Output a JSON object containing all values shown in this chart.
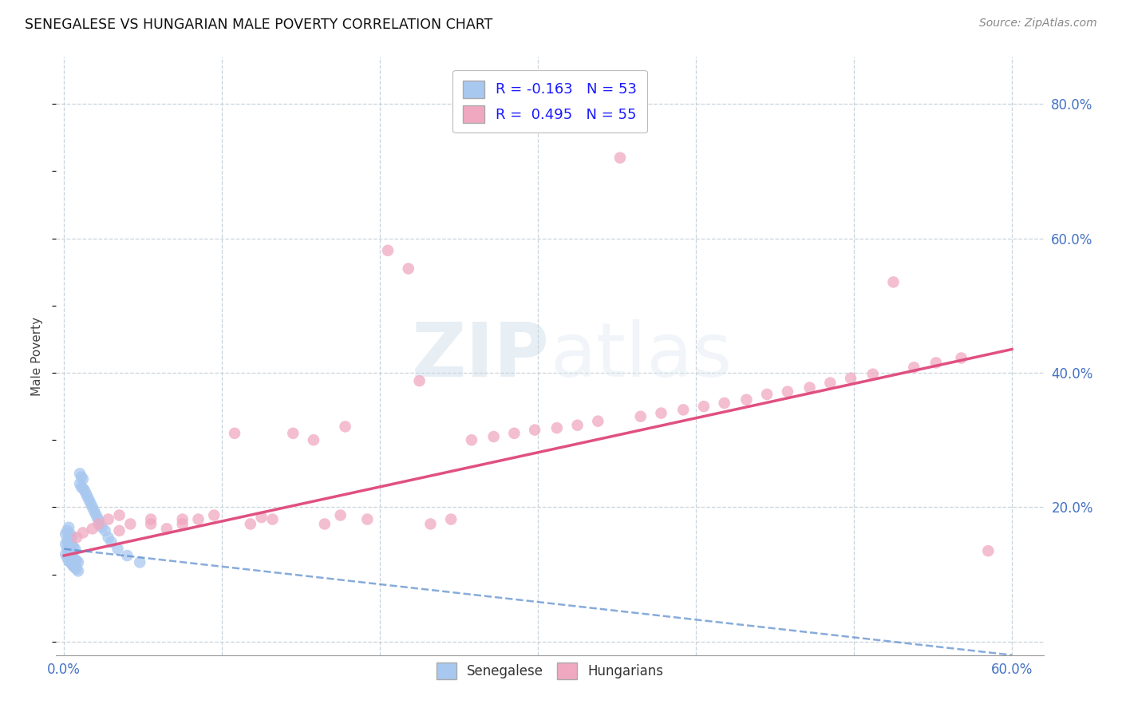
{
  "title": "SENEGALESE VS HUNGARIAN MALE POVERTY CORRELATION CHART",
  "source": "Source: ZipAtlas.com",
  "ylabel": "Male Poverty",
  "xlim": [
    -0.005,
    0.62
  ],
  "ylim": [
    -0.02,
    0.87
  ],
  "blue_color": "#a8c8f0",
  "pink_color": "#f0a8c0",
  "trend_blue_color": "#5588cc",
  "trend_pink_color": "#e05080",
  "watermark_color": "#dde8f0",
  "background_color": "#ffffff",
  "grid_color": "#c8d4dc",
  "legend_r_blue": "R = -0.163",
  "legend_n_blue": "N = 53",
  "legend_r_pink": "R =  0.495",
  "legend_n_pink": "N = 55",
  "sen_x": [
    0.001,
    0.001,
    0.001,
    0.002,
    0.002,
    0.002,
    0.002,
    0.003,
    0.003,
    0.003,
    0.003,
    0.003,
    0.004,
    0.004,
    0.004,
    0.004,
    0.005,
    0.005,
    0.005,
    0.005,
    0.006,
    0.006,
    0.006,
    0.007,
    0.007,
    0.007,
    0.008,
    0.008,
    0.009,
    0.009,
    0.01,
    0.01,
    0.011,
    0.011,
    0.012,
    0.012,
    0.013,
    0.014,
    0.015,
    0.016,
    0.017,
    0.018,
    0.019,
    0.02,
    0.021,
    0.022,
    0.024,
    0.026,
    0.028,
    0.03,
    0.034,
    0.04,
    0.048
  ],
  "sen_y": [
    0.13,
    0.145,
    0.16,
    0.125,
    0.138,
    0.15,
    0.165,
    0.12,
    0.135,
    0.148,
    0.158,
    0.17,
    0.118,
    0.13,
    0.145,
    0.16,
    0.115,
    0.128,
    0.142,
    0.155,
    0.112,
    0.125,
    0.14,
    0.11,
    0.122,
    0.138,
    0.108,
    0.12,
    0.105,
    0.118,
    0.235,
    0.25,
    0.23,
    0.245,
    0.228,
    0.242,
    0.225,
    0.22,
    0.215,
    0.21,
    0.205,
    0.2,
    0.195,
    0.19,
    0.185,
    0.18,
    0.17,
    0.165,
    0.155,
    0.148,
    0.138,
    0.128,
    0.118
  ],
  "hun_x": [
    0.008,
    0.012,
    0.018,
    0.022,
    0.028,
    0.035,
    0.042,
    0.055,
    0.065,
    0.075,
    0.085,
    0.095,
    0.108,
    0.118,
    0.132,
    0.145,
    0.158,
    0.165,
    0.178,
    0.192,
    0.205,
    0.218,
    0.232,
    0.245,
    0.258,
    0.272,
    0.285,
    0.298,
    0.312,
    0.325,
    0.338,
    0.352,
    0.365,
    0.378,
    0.392,
    0.405,
    0.418,
    0.432,
    0.445,
    0.458,
    0.472,
    0.485,
    0.498,
    0.512,
    0.525,
    0.538,
    0.552,
    0.568,
    0.035,
    0.055,
    0.075,
    0.125,
    0.175,
    0.225,
    0.585
  ],
  "hun_y": [
    0.155,
    0.162,
    0.168,
    0.175,
    0.182,
    0.188,
    0.175,
    0.182,
    0.168,
    0.175,
    0.182,
    0.188,
    0.31,
    0.175,
    0.182,
    0.31,
    0.3,
    0.175,
    0.32,
    0.182,
    0.582,
    0.555,
    0.175,
    0.182,
    0.3,
    0.305,
    0.31,
    0.315,
    0.318,
    0.322,
    0.328,
    0.72,
    0.335,
    0.34,
    0.345,
    0.35,
    0.355,
    0.36,
    0.368,
    0.372,
    0.378,
    0.385,
    0.392,
    0.398,
    0.535,
    0.408,
    0.415,
    0.422,
    0.165,
    0.175,
    0.182,
    0.185,
    0.188,
    0.388,
    0.135
  ],
  "hun_trend_x0": 0.0,
  "hun_trend_y0": 0.128,
  "hun_trend_x1": 0.6,
  "hun_trend_y1": 0.435,
  "sen_trend_x0": 0.0,
  "sen_trend_y0": 0.138,
  "sen_trend_x1": 0.6,
  "sen_trend_y1": -0.02
}
